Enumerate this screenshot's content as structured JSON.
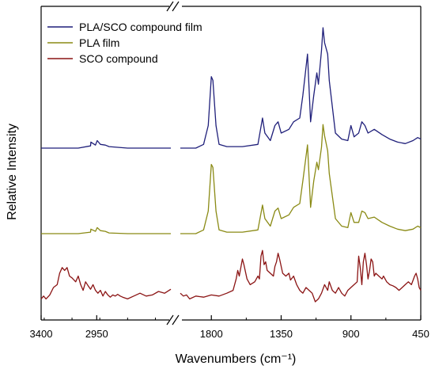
{
  "chart_data": {
    "type": "line",
    "xlabel": "Wavenumbers (cm⁻¹)",
    "ylabel": "Relative Intensity",
    "x_reversed": true,
    "x_axis_break": true,
    "x_segments": [
      {
        "range": [
          3400,
          2350
        ],
        "ticks": [
          3400,
          2950
        ]
      },
      {
        "range": [
          2000,
          450
        ],
        "ticks": [
          1800,
          1350,
          900,
          450
        ]
      }
    ],
    "x_tick_labels": [
      "3400",
      "2950",
      "1800",
      "1350",
      "900",
      "450"
    ],
    "yticks_shown": false,
    "legend": {
      "position": "top-left",
      "entries": [
        {
          "label": "PLA/SCO compound film",
          "color": "#1f1f7a"
        },
        {
          "label": "PLA film",
          "color": "#8a8a14"
        },
        {
          "label": "SCO compound",
          "color": "#8b1414"
        }
      ]
    },
    "series": [
      {
        "name": "PLA/SCO compound film",
        "color": "#1f1f7a",
        "baseline": 0.0,
        "points": [
          [
            3400,
            0.0
          ],
          [
            3300,
            0.0
          ],
          [
            3100,
            0.0
          ],
          [
            3000,
            0.03
          ],
          [
            2997,
            0.08
          ],
          [
            2960,
            0.04
          ],
          [
            2946,
            0.1
          ],
          [
            2920,
            0.05
          ],
          [
            2880,
            0.04
          ],
          [
            2850,
            0.02
          ],
          [
            2700,
            0.0
          ],
          [
            2500,
            0.0
          ],
          [
            2350,
            0.0
          ],
          [
            2000,
            0.0
          ],
          [
            1900,
            0.0
          ],
          [
            1850,
            0.05
          ],
          [
            1820,
            0.3
          ],
          [
            1800,
            0.95
          ],
          [
            1790,
            0.9
          ],
          [
            1770,
            0.3
          ],
          [
            1750,
            0.05
          ],
          [
            1700,
            0.02
          ],
          [
            1600,
            0.02
          ],
          [
            1500,
            0.05
          ],
          [
            1470,
            0.4
          ],
          [
            1455,
            0.2
          ],
          [
            1420,
            0.1
          ],
          [
            1390,
            0.3
          ],
          [
            1370,
            0.35
          ],
          [
            1350,
            0.2
          ],
          [
            1300,
            0.25
          ],
          [
            1270,
            0.35
          ],
          [
            1230,
            0.4
          ],
          [
            1210,
            0.7
          ],
          [
            1180,
            1.25
          ],
          [
            1160,
            0.35
          ],
          [
            1140,
            0.7
          ],
          [
            1120,
            1.0
          ],
          [
            1110,
            0.85
          ],
          [
            1090,
            1.3
          ],
          [
            1080,
            1.6
          ],
          [
            1070,
            1.4
          ],
          [
            1050,
            1.25
          ],
          [
            1040,
            0.9
          ],
          [
            1000,
            0.2
          ],
          [
            960,
            0.12
          ],
          [
            920,
            0.1
          ],
          [
            900,
            0.3
          ],
          [
            880,
            0.15
          ],
          [
            850,
            0.2
          ],
          [
            830,
            0.35
          ],
          [
            810,
            0.3
          ],
          [
            790,
            0.2
          ],
          [
            750,
            0.25
          ],
          [
            700,
            0.18
          ],
          [
            650,
            0.12
          ],
          [
            600,
            0.08
          ],
          [
            550,
            0.06
          ],
          [
            500,
            0.1
          ],
          [
            470,
            0.14
          ],
          [
            450,
            0.12
          ]
        ]
      },
      {
        "name": "PLA film",
        "color": "#8a8a14",
        "baseline": 0.0,
        "points": [
          [
            3400,
            0.0
          ],
          [
            3300,
            0.0
          ],
          [
            3100,
            0.0
          ],
          [
            3000,
            0.02
          ],
          [
            2997,
            0.06
          ],
          [
            2960,
            0.03
          ],
          [
            2946,
            0.08
          ],
          [
            2920,
            0.04
          ],
          [
            2880,
            0.03
          ],
          [
            2850,
            0.01
          ],
          [
            2700,
            0.0
          ],
          [
            2500,
            0.0
          ],
          [
            2350,
            0.0
          ],
          [
            2000,
            0.0
          ],
          [
            1900,
            0.0
          ],
          [
            1850,
            0.05
          ],
          [
            1820,
            0.3
          ],
          [
            1800,
            0.92
          ],
          [
            1790,
            0.88
          ],
          [
            1770,
            0.3
          ],
          [
            1750,
            0.05
          ],
          [
            1700,
            0.02
          ],
          [
            1600,
            0.02
          ],
          [
            1500,
            0.05
          ],
          [
            1470,
            0.38
          ],
          [
            1455,
            0.2
          ],
          [
            1420,
            0.1
          ],
          [
            1390,
            0.3
          ],
          [
            1370,
            0.34
          ],
          [
            1350,
            0.2
          ],
          [
            1300,
            0.25
          ],
          [
            1270,
            0.35
          ],
          [
            1230,
            0.4
          ],
          [
            1210,
            0.7
          ],
          [
            1180,
            1.18
          ],
          [
            1160,
            0.35
          ],
          [
            1140,
            0.7
          ],
          [
            1120,
            0.95
          ],
          [
            1110,
            0.85
          ],
          [
            1090,
            1.15
          ],
          [
            1080,
            1.45
          ],
          [
            1070,
            1.3
          ],
          [
            1050,
            1.1
          ],
          [
            1040,
            0.8
          ],
          [
            1000,
            0.2
          ],
          [
            960,
            0.1
          ],
          [
            920,
            0.08
          ],
          [
            900,
            0.28
          ],
          [
            880,
            0.15
          ],
          [
            850,
            0.15
          ],
          [
            830,
            0.3
          ],
          [
            810,
            0.28
          ],
          [
            790,
            0.2
          ],
          [
            750,
            0.22
          ],
          [
            700,
            0.15
          ],
          [
            650,
            0.1
          ],
          [
            600,
            0.06
          ],
          [
            550,
            0.04
          ],
          [
            500,
            0.06
          ],
          [
            470,
            0.1
          ],
          [
            450,
            0.08
          ]
        ]
      },
      {
        "name": "SCO compound",
        "color": "#8b1414",
        "baseline": 0.0,
        "points": [
          [
            3400,
            0.05
          ],
          [
            3380,
            0.1
          ],
          [
            3360,
            0.05
          ],
          [
            3330,
            0.12
          ],
          [
            3300,
            0.25
          ],
          [
            3270,
            0.3
          ],
          [
            3250,
            0.5
          ],
          [
            3230,
            0.6
          ],
          [
            3210,
            0.55
          ],
          [
            3190,
            0.6
          ],
          [
            3170,
            0.45
          ],
          [
            3150,
            0.42
          ],
          [
            3120,
            0.35
          ],
          [
            3100,
            0.45
          ],
          [
            3080,
            0.3
          ],
          [
            3060,
            0.2
          ],
          [
            3040,
            0.35
          ],
          [
            3020,
            0.28
          ],
          [
            3000,
            0.22
          ],
          [
            2980,
            0.3
          ],
          [
            2960,
            0.2
          ],
          [
            2940,
            0.15
          ],
          [
            2920,
            0.2
          ],
          [
            2900,
            0.1
          ],
          [
            2880,
            0.18
          ],
          [
            2860,
            0.12
          ],
          [
            2840,
            0.08
          ],
          [
            2820,
            0.12
          ],
          [
            2800,
            0.1
          ],
          [
            2780,
            0.13
          ],
          [
            2760,
            0.1
          ],
          [
            2740,
            0.08
          ],
          [
            2700,
            0.05
          ],
          [
            2650,
            0.1
          ],
          [
            2600,
            0.15
          ],
          [
            2550,
            0.1
          ],
          [
            2500,
            0.12
          ],
          [
            2450,
            0.18
          ],
          [
            2400,
            0.15
          ],
          [
            2350,
            0.22
          ],
          [
            2000,
            0.15
          ],
          [
            1980,
            0.1
          ],
          [
            1960,
            0.12
          ],
          [
            1940,
            0.05
          ],
          [
            1900,
            0.1
          ],
          [
            1850,
            0.08
          ],
          [
            1800,
            0.12
          ],
          [
            1750,
            0.1
          ],
          [
            1700,
            0.15
          ],
          [
            1660,
            0.2
          ],
          [
            1640,
            0.4
          ],
          [
            1630,
            0.55
          ],
          [
            1620,
            0.45
          ],
          [
            1600,
            0.75
          ],
          [
            1590,
            0.65
          ],
          [
            1570,
            0.4
          ],
          [
            1550,
            0.3
          ],
          [
            1520,
            0.35
          ],
          [
            1500,
            0.45
          ],
          [
            1490,
            0.4
          ],
          [
            1480,
            0.8
          ],
          [
            1470,
            0.9
          ],
          [
            1460,
            0.65
          ],
          [
            1450,
            0.7
          ],
          [
            1440,
            0.55
          ],
          [
            1420,
            0.5
          ],
          [
            1400,
            0.45
          ],
          [
            1390,
            0.62
          ],
          [
            1380,
            0.7
          ],
          [
            1370,
            0.85
          ],
          [
            1360,
            0.75
          ],
          [
            1340,
            0.5
          ],
          [
            1320,
            0.45
          ],
          [
            1300,
            0.5
          ],
          [
            1290,
            0.38
          ],
          [
            1270,
            0.45
          ],
          [
            1250,
            0.3
          ],
          [
            1230,
            0.2
          ],
          [
            1210,
            0.15
          ],
          [
            1190,
            0.25
          ],
          [
            1170,
            0.2
          ],
          [
            1150,
            0.15
          ],
          [
            1130,
            0.0
          ],
          [
            1110,
            0.05
          ],
          [
            1090,
            0.15
          ],
          [
            1070,
            0.3
          ],
          [
            1050,
            0.2
          ],
          [
            1040,
            0.35
          ],
          [
            1020,
            0.2
          ],
          [
            1000,
            0.15
          ],
          [
            980,
            0.25
          ],
          [
            960,
            0.15
          ],
          [
            940,
            0.1
          ],
          [
            920,
            0.2
          ],
          [
            900,
            0.25
          ],
          [
            880,
            0.3
          ],
          [
            860,
            0.35
          ],
          [
            850,
            0.8
          ],
          [
            840,
            0.6
          ],
          [
            830,
            0.3
          ],
          [
            820,
            0.7
          ],
          [
            810,
            0.85
          ],
          [
            800,
            0.65
          ],
          [
            790,
            0.4
          ],
          [
            780,
            0.55
          ],
          [
            770,
            0.75
          ],
          [
            760,
            0.7
          ],
          [
            750,
            0.45
          ],
          [
            740,
            0.5
          ],
          [
            720,
            0.45
          ],
          [
            700,
            0.4
          ],
          [
            690,
            0.45
          ],
          [
            670,
            0.35
          ],
          [
            650,
            0.3
          ],
          [
            630,
            0.28
          ],
          [
            610,
            0.25
          ],
          [
            590,
            0.2
          ],
          [
            570,
            0.25
          ],
          [
            550,
            0.3
          ],
          [
            530,
            0.35
          ],
          [
            510,
            0.3
          ],
          [
            490,
            0.45
          ],
          [
            480,
            0.5
          ],
          [
            470,
            0.4
          ],
          [
            460,
            0.25
          ],
          [
            450,
            0.2
          ]
        ]
      }
    ]
  }
}
